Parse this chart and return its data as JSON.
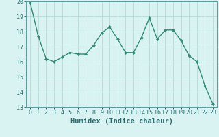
{
  "x": [
    0,
    1,
    2,
    3,
    4,
    5,
    6,
    7,
    8,
    9,
    10,
    11,
    12,
    13,
    14,
    15,
    16,
    17,
    18,
    19,
    20,
    21,
    22,
    23
  ],
  "y": [
    19.9,
    17.7,
    16.2,
    16.0,
    16.3,
    16.6,
    16.5,
    16.5,
    17.1,
    17.9,
    18.3,
    17.5,
    16.6,
    16.6,
    17.6,
    18.9,
    17.5,
    18.1,
    18.1,
    17.4,
    16.4,
    16.0,
    14.4,
    13.2
  ],
  "line_color": "#2e8b74",
  "marker": "D",
  "marker_size": 2.0,
  "line_width": 1.0,
  "bg_color": "#d9f2f2",
  "grid_color": "#b8d8d8",
  "xlabel": "Humidex (Indice chaleur)",
  "ylim": [
    13,
    20
  ],
  "xlim": [
    -0.5,
    23.5
  ],
  "yticks": [
    13,
    14,
    15,
    16,
    17,
    18,
    19,
    20
  ],
  "xticks": [
    0,
    1,
    2,
    3,
    4,
    5,
    6,
    7,
    8,
    9,
    10,
    11,
    12,
    13,
    14,
    15,
    16,
    17,
    18,
    19,
    20,
    21,
    22,
    23
  ],
  "tick_color": "#2e6b6b",
  "label_color": "#2e6b6b",
  "xlabel_fontsize": 7.5,
  "tick_fontsize": 6.0,
  "spine_color": "#5a9a9a"
}
